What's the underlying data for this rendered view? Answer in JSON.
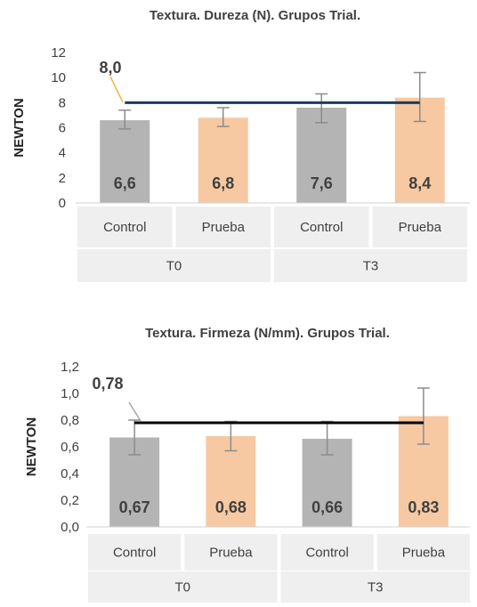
{
  "chart_data": [
    {
      "type": "bar",
      "title": "Textura. Dureza (N). Grupos Trial.",
      "ylabel": "NEWTON",
      "ylim": [
        0,
        12
      ],
      "yticks": [
        "0",
        "2",
        "4",
        "6",
        "8",
        "10",
        "12"
      ],
      "ytick_values": [
        0,
        2,
        4,
        6,
        8,
        10,
        12
      ],
      "categories": [
        "Control",
        "Prueba",
        "Control",
        "Prueba"
      ],
      "groups": [
        "T0",
        "T3"
      ],
      "values": [
        6.6,
        6.8,
        7.6,
        8.4
      ],
      "value_labels": [
        "6,6",
        "6,8",
        "7,6",
        "8,4"
      ],
      "error_low": [
        5.9,
        6.1,
        6.4,
        6.5
      ],
      "error_high": [
        7.4,
        7.6,
        8.7,
        10.4
      ],
      "reference": {
        "value": 8.0,
        "label": "8,0",
        "color": "#1f3c5a",
        "leader_color": "#f0b646"
      },
      "bar_colors": [
        "#b4b4b4",
        "#f6c9a2",
        "#b4b4b4",
        "#f6c9a2"
      ],
      "grid": false
    },
    {
      "type": "bar",
      "title": "Textura. Firmeza (N/mm). Grupos Trial.",
      "ylabel": "NEWTON",
      "ylim": [
        0,
        1.2
      ],
      "yticks": [
        "0,0",
        "0,2",
        "0,4",
        "0,6",
        "0,8",
        "1,0",
        "1,2"
      ],
      "ytick_values": [
        0,
        0.2,
        0.4,
        0.6,
        0.8,
        1.0,
        1.2
      ],
      "categories": [
        "Control",
        "Prueba",
        "Control",
        "Prueba"
      ],
      "groups": [
        "T0",
        "T3"
      ],
      "values": [
        0.67,
        0.68,
        0.66,
        0.83
      ],
      "value_labels": [
        "0,67",
        "0,68",
        "0,66",
        "0,83"
      ],
      "error_low": [
        0.54,
        0.57,
        0.54,
        0.62
      ],
      "error_high": [
        0.8,
        0.79,
        0.79,
        1.04
      ],
      "reference": {
        "value": 0.78,
        "label": "0,78",
        "color": "#000000",
        "leader_color": "#a6a6a6"
      },
      "bar_colors": [
        "#b4b4b4",
        "#f6c9a2",
        "#b4b4b4",
        "#f6c9a2"
      ],
      "grid": false
    }
  ]
}
